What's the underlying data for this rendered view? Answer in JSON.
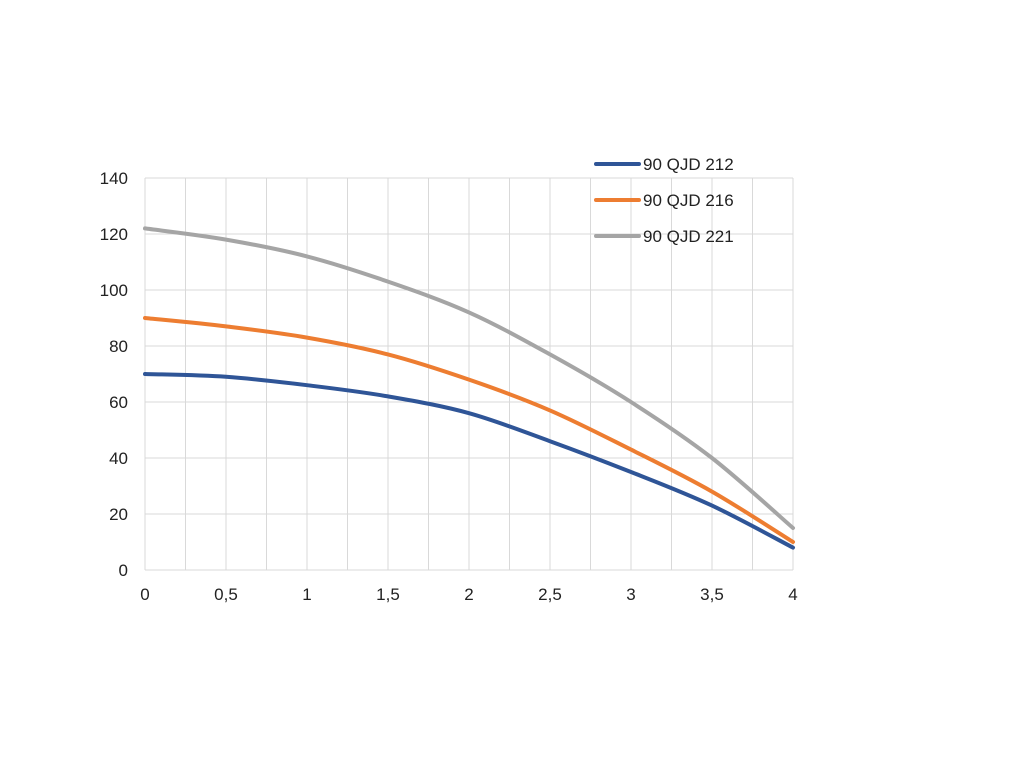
{
  "chart_data": {
    "type": "line",
    "title": "",
    "xlabel": "",
    "ylabel": "",
    "xlim": [
      0,
      4
    ],
    "ylim": [
      0,
      140
    ],
    "x_ticks": [
      "0",
      "0,5",
      "1",
      "1,5",
      "2",
      "2,5",
      "3",
      "3,5",
      "4"
    ],
    "y_ticks": [
      "0",
      "20",
      "40",
      "60",
      "80",
      "100",
      "120",
      "140"
    ],
    "grid": true,
    "legend_position": "top-right",
    "x": [
      0,
      0.5,
      1,
      1.5,
      2,
      2.5,
      3,
      3.5,
      4
    ],
    "series": [
      {
        "name": "90 QJD 212",
        "color": "#2f5597",
        "values": [
          70,
          69,
          66,
          62,
          56,
          46,
          35,
          23,
          8
        ]
      },
      {
        "name": "90 QJD 216",
        "color": "#ed7d31",
        "values": [
          90,
          87,
          83,
          77,
          68,
          57,
          43,
          28,
          10
        ]
      },
      {
        "name": "90 QJD 221",
        "color": "#a5a5a5",
        "values": [
          122,
          118,
          112,
          103,
          92,
          77,
          60,
          40,
          15
        ]
      }
    ]
  }
}
